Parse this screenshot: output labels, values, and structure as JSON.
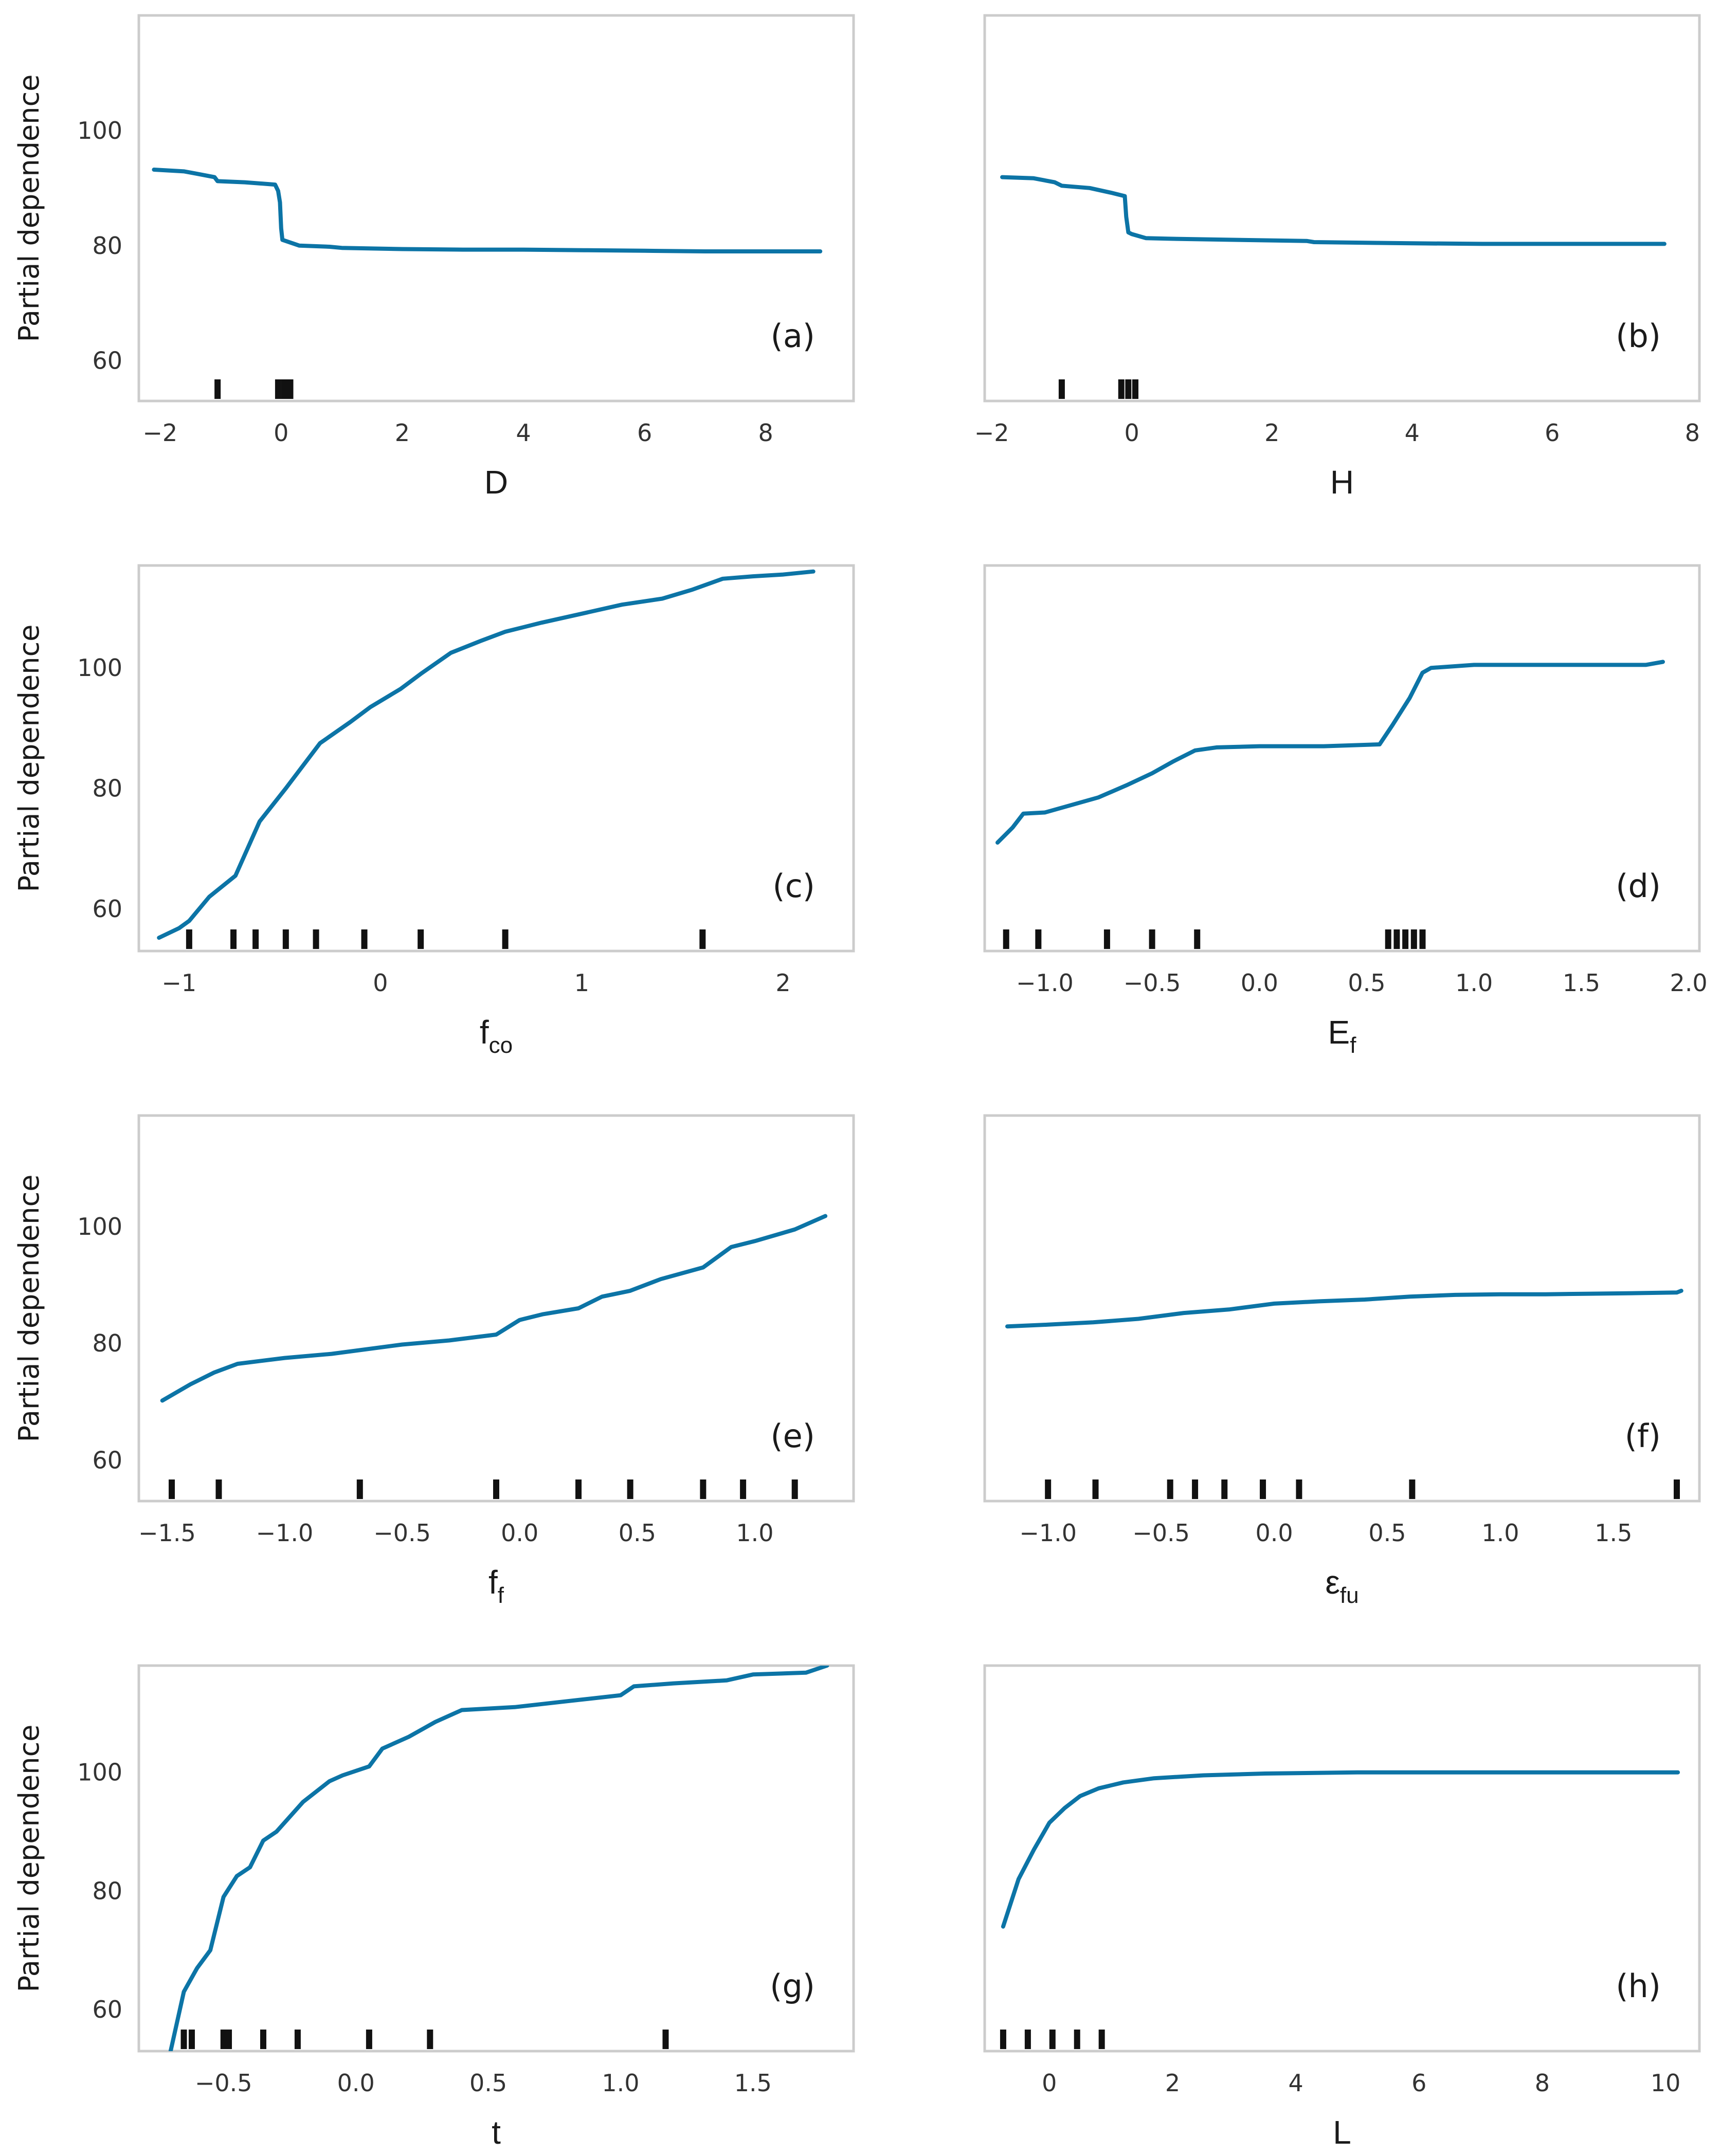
{
  "style": {
    "line_color": "#0c74a6",
    "rug_color": "#111111",
    "frame_color": "#cccccc"
  },
  "chart_data": [
    {
      "type": "line",
      "panel_label": "(a)",
      "ylabel": "Partial dependence",
      "xlabel": "D",
      "xlabel_sub": "",
      "xlim": [
        -2.35,
        9.45
      ],
      "ylim": [
        53,
        120
      ],
      "xticks": [
        -2,
        0,
        2,
        4,
        6,
        8
      ],
      "xtick_labels": [
        "−2",
        "0",
        "2",
        "4",
        "6",
        "8"
      ],
      "yticks": [
        60,
        80,
        100
      ],
      "ytick_labels": [
        "60",
        "80",
        "100"
      ],
      "rug": [
        -1.05,
        -0.05,
        0.05,
        0.15
      ],
      "x": [
        -2.1,
        -1.6,
        -1.4,
        -1.1,
        -1.05,
        -0.6,
        -0.1,
        -0.05,
        -0.02,
        0.0,
        0.02,
        0.3,
        0.8,
        1.0,
        2.0,
        3.0,
        4.0,
        5.0,
        6.0,
        7.0,
        8.0,
        8.9
      ],
      "y": [
        93.2,
        92.9,
        92.5,
        91.9,
        91.2,
        91.0,
        90.6,
        89.5,
        87.5,
        83.0,
        81.0,
        80.0,
        79.8,
        79.6,
        79.4,
        79.3,
        79.3,
        79.2,
        79.1,
        79.0,
        79.0,
        79.0
      ]
    },
    {
      "type": "line",
      "panel_label": "(b)",
      "ylabel": "",
      "xlabel": "H",
      "xlabel_sub": "",
      "xlim": [
        -2.1,
        8.1
      ],
      "ylim": [
        53,
        120
      ],
      "xticks": [
        -2,
        0,
        2,
        4,
        6,
        8
      ],
      "xtick_labels": [
        "−2",
        "0",
        "2",
        "4",
        "6",
        "8"
      ],
      "yticks": [
        60,
        80,
        100
      ],
      "ytick_labels": [
        "",
        "",
        ""
      ],
      "rug": [
        -1.0,
        -0.15,
        -0.05,
        0.05
      ],
      "x": [
        -1.85,
        -1.4,
        -1.1,
        -1.0,
        -0.6,
        -0.3,
        -0.1,
        -0.08,
        -0.05,
        0.0,
        0.2,
        0.5,
        1.5,
        2.5,
        2.6,
        4.0,
        5.0,
        6.0,
        7.0,
        7.6
      ],
      "y": [
        91.9,
        91.7,
        91.0,
        90.4,
        90.0,
        89.2,
        88.6,
        85.0,
        82.3,
        82.0,
        81.3,
        81.2,
        81.0,
        80.8,
        80.6,
        80.4,
        80.3,
        80.3,
        80.3,
        80.3
      ]
    },
    {
      "type": "line",
      "panel_label": "(c)",
      "ylabel": "Partial dependence",
      "xlabel": "f",
      "xlabel_sub": "co",
      "xlim": [
        -1.2,
        2.35
      ],
      "ylim": [
        53,
        117
      ],
      "xticks": [
        -1,
        0,
        1,
        2
      ],
      "xtick_labels": [
        "−1",
        "0",
        "1",
        "2"
      ],
      "yticks": [
        60,
        80,
        100
      ],
      "ytick_labels": [
        "60",
        "80",
        "100"
      ],
      "rug": [
        -0.95,
        -0.73,
        -0.62,
        -0.47,
        -0.32,
        -0.08,
        0.2,
        0.62,
        1.6
      ],
      "x": [
        -1.1,
        -1.0,
        -0.95,
        -0.85,
        -0.72,
        -0.6,
        -0.47,
        -0.3,
        -0.15,
        -0.05,
        0.1,
        0.2,
        0.35,
        0.5,
        0.62,
        0.8,
        1.0,
        1.2,
        1.4,
        1.55,
        1.7,
        1.85,
        2.0,
        2.15
      ],
      "y": [
        55.2,
        56.8,
        58.0,
        62.0,
        65.5,
        74.5,
        80.0,
        87.5,
        91.0,
        93.5,
        96.5,
        99.0,
        102.5,
        104.5,
        106.0,
        107.5,
        109.0,
        110.5,
        111.5,
        113.0,
        114.8,
        115.2,
        115.5,
        116.0
      ]
    },
    {
      "type": "line",
      "panel_label": "(d)",
      "ylabel": "",
      "xlabel": "E",
      "xlabel_sub": "f",
      "xlim": [
        -1.28,
        2.05
      ],
      "ylim": [
        53,
        117
      ],
      "xticks": [
        -1.0,
        -0.5,
        0.0,
        0.5,
        1.0,
        1.5,
        2.0
      ],
      "xtick_labels": [
        "−1.0",
        "−0.5",
        "0.0",
        "0.5",
        "1.0",
        "1.5",
        "2.0"
      ],
      "yticks": [
        60,
        80,
        100
      ],
      "ytick_labels": [
        "",
        "",
        ""
      ],
      "rug": [
        -1.18,
        -1.03,
        -0.71,
        -0.5,
        -0.29,
        0.6,
        0.64,
        0.68,
        0.72,
        0.76
      ],
      "x": [
        -1.22,
        -1.15,
        -1.1,
        -1.0,
        -0.9,
        -0.75,
        -0.62,
        -0.5,
        -0.4,
        -0.3,
        -0.2,
        0.0,
        0.3,
        0.56,
        0.62,
        0.7,
        0.76,
        0.8,
        1.0,
        1.3,
        1.6,
        1.8,
        1.88
      ],
      "y": [
        71.0,
        73.5,
        75.8,
        76.0,
        77.0,
        78.5,
        80.5,
        82.5,
        84.5,
        86.3,
        86.8,
        87.0,
        87.0,
        87.3,
        90.5,
        95.0,
        99.2,
        100.0,
        100.5,
        100.5,
        100.5,
        100.5,
        101.0
      ]
    },
    {
      "type": "line",
      "panel_label": "(e)",
      "ylabel": "Partial dependence",
      "xlabel": "f",
      "xlabel_sub": "f",
      "xlim": [
        -1.62,
        1.42
      ],
      "ylim": [
        53,
        119
      ],
      "xticks": [
        -1.5,
        -1.0,
        -0.5,
        0.0,
        0.5,
        1.0
      ],
      "xtick_labels": [
        "−1.5",
        "−1.0",
        "−0.5",
        "0.0",
        "0.5",
        "1.0"
      ],
      "yticks": [
        60,
        80,
        100
      ],
      "ytick_labels": [
        "60",
        "80",
        "100"
      ],
      "rug": [
        -1.48,
        -1.28,
        -0.68,
        -0.1,
        0.25,
        0.47,
        0.78,
        0.95,
        1.17
      ],
      "x": [
        -1.52,
        -1.4,
        -1.3,
        -1.2,
        -1.0,
        -0.8,
        -0.5,
        -0.3,
        -0.1,
        0.0,
        0.1,
        0.25,
        0.35,
        0.47,
        0.6,
        0.78,
        0.9,
        1.0,
        1.17,
        1.3
      ],
      "y": [
        70.2,
        73.0,
        75.0,
        76.5,
        77.5,
        78.2,
        79.8,
        80.5,
        81.5,
        84.0,
        85.0,
        86.0,
        88.0,
        89.0,
        91.0,
        93.0,
        96.5,
        97.5,
        99.5,
        101.8
      ]
    },
    {
      "type": "line",
      "panel_label": "(f)",
      "ylabel": "",
      "xlabel": "ε",
      "xlabel_sub": "fu",
      "xlim": [
        -1.28,
        1.88
      ],
      "ylim": [
        53,
        119
      ],
      "xticks": [
        -1.0,
        -0.5,
        0.0,
        0.5,
        1.0,
        1.5
      ],
      "xtick_labels": [
        "−1.0",
        "−0.5",
        "0.0",
        "0.5",
        "1.0",
        "1.5"
      ],
      "yticks": [
        60,
        80,
        100
      ],
      "ytick_labels": [
        "",
        "",
        ""
      ],
      "rug": [
        -1.0,
        -0.79,
        -0.46,
        -0.35,
        -0.22,
        -0.05,
        0.11,
        0.61,
        1.78
      ],
      "x": [
        -1.18,
        -1.0,
        -0.8,
        -0.6,
        -0.4,
        -0.2,
        0.0,
        0.2,
        0.4,
        0.6,
        0.8,
        1.0,
        1.2,
        1.4,
        1.6,
        1.78,
        1.8
      ],
      "y": [
        82.9,
        83.2,
        83.6,
        84.2,
        85.2,
        85.8,
        86.8,
        87.2,
        87.5,
        88.0,
        88.3,
        88.4,
        88.4,
        88.5,
        88.6,
        88.7,
        89.0
      ]
    },
    {
      "type": "line",
      "panel_label": "(g)",
      "ylabel": "Partial dependence",
      "xlabel": "t",
      "xlabel_sub": "",
      "xlim": [
        -0.82,
        1.88
      ],
      "ylim": [
        53,
        118
      ],
      "xticks": [
        -0.5,
        0.0,
        0.5,
        1.0,
        1.5
      ],
      "xtick_labels": [
        "−0.5",
        "0.0",
        "0.5",
        "1.0",
        "1.5"
      ],
      "yticks": [
        60,
        80,
        100
      ],
      "ytick_labels": [
        "60",
        "80",
        "100"
      ],
      "rug": [
        -0.65,
        -0.62,
        -0.5,
        -0.48,
        -0.35,
        -0.22,
        0.05,
        0.28,
        1.17
      ],
      "x": [
        -0.7,
        -0.65,
        -0.6,
        -0.55,
        -0.5,
        -0.45,
        -0.4,
        -0.35,
        -0.3,
        -0.2,
        -0.1,
        -0.05,
        0.05,
        0.1,
        0.2,
        0.3,
        0.4,
        0.6,
        0.8,
        1.0,
        1.05,
        1.2,
        1.4,
        1.5,
        1.7,
        1.78
      ],
      "y": [
        53.0,
        63.0,
        67.0,
        70.0,
        79.0,
        82.5,
        84.0,
        88.5,
        90.0,
        95.0,
        98.5,
        99.5,
        101.0,
        104.0,
        106.0,
        108.5,
        110.5,
        111.0,
        112.0,
        113.0,
        114.5,
        115.0,
        115.5,
        116.5,
        116.8,
        118.0
      ]
    },
    {
      "type": "line",
      "panel_label": "(h)",
      "ylabel": "",
      "xlabel": "L",
      "xlabel_sub": "",
      "xlim": [
        -1.05,
        10.55
      ],
      "ylim": [
        53,
        118
      ],
      "xticks": [
        0,
        2,
        4,
        6,
        8,
        10
      ],
      "xtick_labels": [
        "0",
        "2",
        "4",
        "6",
        "8",
        "10"
      ],
      "yticks": [
        60,
        80,
        100
      ],
      "ytick_labels": [
        "",
        "",
        ""
      ],
      "rug": [
        -0.75,
        -0.35,
        0.05,
        0.45,
        0.85
      ],
      "x": [
        -0.75,
        -0.5,
        -0.25,
        0.0,
        0.25,
        0.5,
        0.8,
        1.2,
        1.7,
        2.5,
        3.5,
        5.0,
        7.0,
        9.0,
        10.2
      ],
      "y": [
        74.0,
        82.0,
        87.0,
        91.5,
        94.0,
        96.0,
        97.3,
        98.3,
        99.0,
        99.5,
        99.8,
        100.0,
        100.0,
        100.0,
        100.0
      ]
    }
  ]
}
